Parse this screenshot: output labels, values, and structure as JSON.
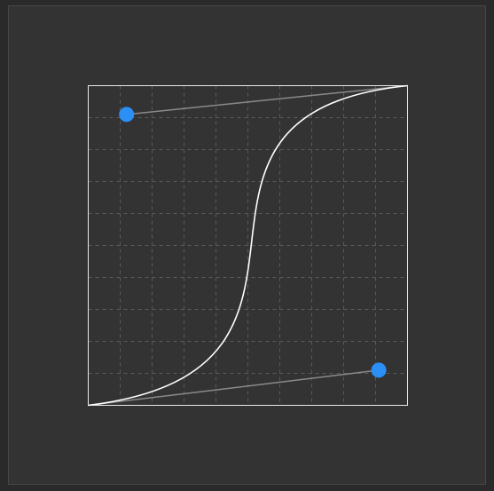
{
  "bezier": {
    "p1": [
      0.91,
      0.11
    ],
    "p2": [
      0.12,
      0.91
    ]
  },
  "grid_divisions": 10
}
